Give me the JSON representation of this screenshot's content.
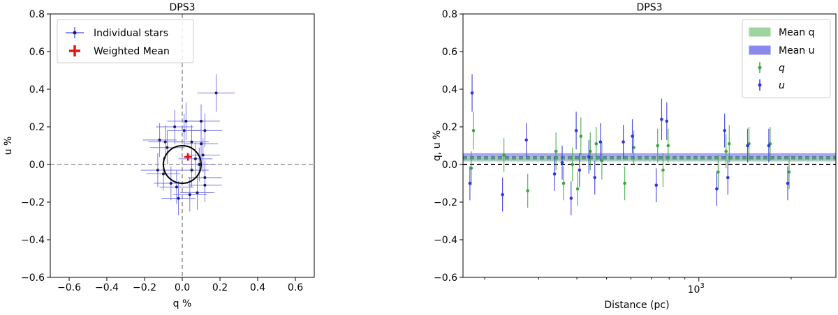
{
  "chart_data": [
    {
      "type": "scatter",
      "title": "DPS3",
      "xlabel": "q %",
      "ylabel": "u %",
      "xlim": [
        -0.7,
        0.7
      ],
      "ylim": [
        -0.6,
        0.8
      ],
      "xticks": [
        -0.6,
        -0.4,
        -0.2,
        0.0,
        0.2,
        0.4,
        0.6
      ],
      "yticks": [
        -0.6,
        -0.4,
        -0.2,
        0.0,
        0.2,
        0.4,
        0.6,
        0.8
      ],
      "xtick_labels": [
        "−0.6",
        "−0.4",
        "−0.2",
        "0.0",
        "0.2",
        "0.4",
        "0.6"
      ],
      "ytick_labels": [
        "−0.6",
        "−0.4",
        "−0.2",
        "0.0",
        "0.2",
        "0.4",
        "0.6",
        "0.8"
      ],
      "legend_position": "top-left",
      "reference_lines": {
        "x": 0,
        "y": 0,
        "style": "dashed gray"
      },
      "circle": {
        "center": [
          0,
          0
        ],
        "radius": 0.1
      },
      "colors": {
        "stars": "#3333dd",
        "errorbars": "#6a6ae6",
        "mean": "#ee1111",
        "circle": "#000000",
        "reflines": "#808080"
      },
      "series": [
        {
          "name": "Individual stars",
          "points": [
            {
              "x": 0.18,
              "y": 0.38,
              "xerr": 0.1,
              "yerr": 0.1
            },
            {
              "x": -0.12,
              "y": 0.13,
              "xerr": 0.09,
              "yerr": 0.09
            },
            {
              "x": 0.02,
              "y": 0.23,
              "xerr": 0.1,
              "yerr": 0.1
            },
            {
              "x": 0.1,
              "y": 0.23,
              "xerr": 0.1,
              "yerr": 0.09
            },
            {
              "x": -0.04,
              "y": 0.2,
              "xerr": 0.1,
              "yerr": 0.09
            },
            {
              "x": 0.12,
              "y": 0.18,
              "xerr": 0.09,
              "yerr": 0.09
            },
            {
              "x": 0.01,
              "y": 0.18,
              "xerr": 0.09,
              "yerr": 0.09
            },
            {
              "x": -0.08,
              "y": 0.09,
              "xerr": 0.09,
              "yerr": 0.09
            },
            {
              "x": -0.09,
              "y": 0.12,
              "xerr": 0.09,
              "yerr": 0.09
            },
            {
              "x": 0.05,
              "y": 0.12,
              "xerr": 0.09,
              "yerr": 0.09
            },
            {
              "x": 0.1,
              "y": 0.11,
              "xerr": 0.09,
              "yerr": 0.09
            },
            {
              "x": 0.11,
              "y": 0.05,
              "xerr": 0.09,
              "yerr": 0.09
            },
            {
              "x": 0.09,
              "y": 0.0,
              "xerr": 0.09,
              "yerr": 0.09
            },
            {
              "x": -0.13,
              "y": -0.03,
              "xerr": 0.09,
              "yerr": 0.09
            },
            {
              "x": -0.1,
              "y": -0.05,
              "xerr": 0.09,
              "yerr": 0.09
            },
            {
              "x": 0.12,
              "y": -0.07,
              "xerr": 0.09,
              "yerr": 0.09
            },
            {
              "x": 0.12,
              "y": -0.11,
              "xerr": 0.09,
              "yerr": 0.09
            },
            {
              "x": -0.06,
              "y": -0.1,
              "xerr": 0.09,
              "yerr": 0.09
            },
            {
              "x": -0.03,
              "y": -0.12,
              "xerr": 0.09,
              "yerr": 0.09
            },
            {
              "x": 0.08,
              "y": -0.15,
              "xerr": 0.09,
              "yerr": 0.09
            },
            {
              "x": -0.02,
              "y": -0.18,
              "xerr": 0.09,
              "yerr": 0.09
            },
            {
              "x": 0.04,
              "y": -0.16,
              "xerr": 0.09,
              "yerr": 0.09
            },
            {
              "x": 0.07,
              "y": 0.03,
              "xerr": 0.09,
              "yerr": 0.09
            },
            {
              "x": 0.05,
              "y": -0.03,
              "xerr": 0.09,
              "yerr": 0.09
            }
          ]
        },
        {
          "name": "Weighted Mean",
          "points": [
            {
              "x": 0.03,
              "y": 0.04,
              "xerr": 0.02,
              "yerr": 0.02
            }
          ]
        }
      ]
    },
    {
      "type": "scatter",
      "title": "DPS3",
      "xlabel": "Distance (pc)",
      "ylabel": "q, u %",
      "xscale": "log",
      "xlim": [
        170,
        2800
      ],
      "ylim": [
        -0.6,
        0.8
      ],
      "yticks": [
        -0.6,
        -0.4,
        -0.2,
        0.0,
        0.2,
        0.4,
        0.6,
        0.8
      ],
      "ytick_labels": [
        "−0.6",
        "−0.4",
        "−0.2",
        "0.0",
        "0.2",
        "0.4",
        "0.6",
        "0.8"
      ],
      "xtick_labels": [
        {
          "base": "10",
          "exp": "3",
          "value": 1000
        }
      ],
      "legend_position": "top-right",
      "reference_lines": {
        "y": 0,
        "style": "dashed black"
      },
      "colors": {
        "q": "#3ea53e",
        "u": "#3333dd",
        "mean_q_band": "#9fd39f",
        "mean_u_band": "#8888ee"
      },
      "bands": [
        {
          "name": "Mean q",
          "center": 0.03,
          "half_width": 0.015
        },
        {
          "name": "Mean u",
          "center": 0.04,
          "half_width": 0.02
        }
      ],
      "series": [
        {
          "name": "q",
          "points": [
            {
              "x": 180,
              "y": -0.02,
              "yerr": 0.09
            },
            {
              "x": 183,
              "y": 0.18,
              "yerr": 0.1
            },
            {
              "x": 230,
              "y": 0.05,
              "yerr": 0.09
            },
            {
              "x": 275,
              "y": -0.14,
              "yerr": 0.09
            },
            {
              "x": 340,
              "y": 0.07,
              "yerr": 0.1
            },
            {
              "x": 360,
              "y": -0.1,
              "yerr": 0.09
            },
            {
              "x": 385,
              "y": 0.0,
              "yerr": 0.09
            },
            {
              "x": 400,
              "y": -0.13,
              "yerr": 0.09
            },
            {
              "x": 410,
              "y": 0.15,
              "yerr": 0.1
            },
            {
              "x": 440,
              "y": 0.07,
              "yerr": 0.1
            },
            {
              "x": 460,
              "y": 0.11,
              "yerr": 0.09
            },
            {
              "x": 480,
              "y": 0.02,
              "yerr": 0.1
            },
            {
              "x": 570,
              "y": -0.1,
              "yerr": 0.09
            },
            {
              "x": 610,
              "y": 0.09,
              "yerr": 0.09
            },
            {
              "x": 730,
              "y": 0.1,
              "yerr": 0.09
            },
            {
              "x": 760,
              "y": -0.03,
              "yerr": 0.09
            },
            {
              "x": 790,
              "y": 0.1,
              "yerr": 0.09
            },
            {
              "x": 1150,
              "y": -0.04,
              "yerr": 0.09
            },
            {
              "x": 1220,
              "y": 0.07,
              "yerr": 0.09
            },
            {
              "x": 1250,
              "y": 0.11,
              "yerr": 0.1
            },
            {
              "x": 1450,
              "y": 0.11,
              "yerr": 0.09
            },
            {
              "x": 1700,
              "y": 0.11,
              "yerr": 0.09
            },
            {
              "x": 1960,
              "y": -0.04,
              "yerr": 0.09
            }
          ]
        },
        {
          "name": "u",
          "points": [
            {
              "x": 180,
              "y": -0.1,
              "yerr": 0.09
            },
            {
              "x": 183,
              "y": 0.38,
              "yerr": 0.1
            },
            {
              "x": 230,
              "y": -0.16,
              "yerr": 0.09
            },
            {
              "x": 275,
              "y": 0.13,
              "yerr": 0.09
            },
            {
              "x": 340,
              "y": -0.05,
              "yerr": 0.09
            },
            {
              "x": 360,
              "y": 0.01,
              "yerr": 0.09
            },
            {
              "x": 385,
              "y": -0.18,
              "yerr": 0.09
            },
            {
              "x": 400,
              "y": 0.18,
              "yerr": 0.1
            },
            {
              "x": 410,
              "y": -0.03,
              "yerr": 0.09
            },
            {
              "x": 440,
              "y": 0.04,
              "yerr": 0.09
            },
            {
              "x": 460,
              "y": -0.07,
              "yerr": 0.09
            },
            {
              "x": 480,
              "y": 0.12,
              "yerr": 0.1
            },
            {
              "x": 570,
              "y": 0.12,
              "yerr": 0.09
            },
            {
              "x": 610,
              "y": 0.15,
              "yerr": 0.09
            },
            {
              "x": 730,
              "y": -0.11,
              "yerr": 0.09
            },
            {
              "x": 760,
              "y": 0.24,
              "yerr": 0.11
            },
            {
              "x": 790,
              "y": 0.23,
              "yerr": 0.1
            },
            {
              "x": 1150,
              "y": -0.13,
              "yerr": 0.09
            },
            {
              "x": 1220,
              "y": 0.18,
              "yerr": 0.09
            },
            {
              "x": 1250,
              "y": -0.07,
              "yerr": 0.09
            },
            {
              "x": 1450,
              "y": 0.1,
              "yerr": 0.09
            },
            {
              "x": 1700,
              "y": 0.1,
              "yerr": 0.09
            },
            {
              "x": 1960,
              "y": -0.1,
              "yerr": 0.09
            }
          ]
        }
      ]
    }
  ]
}
